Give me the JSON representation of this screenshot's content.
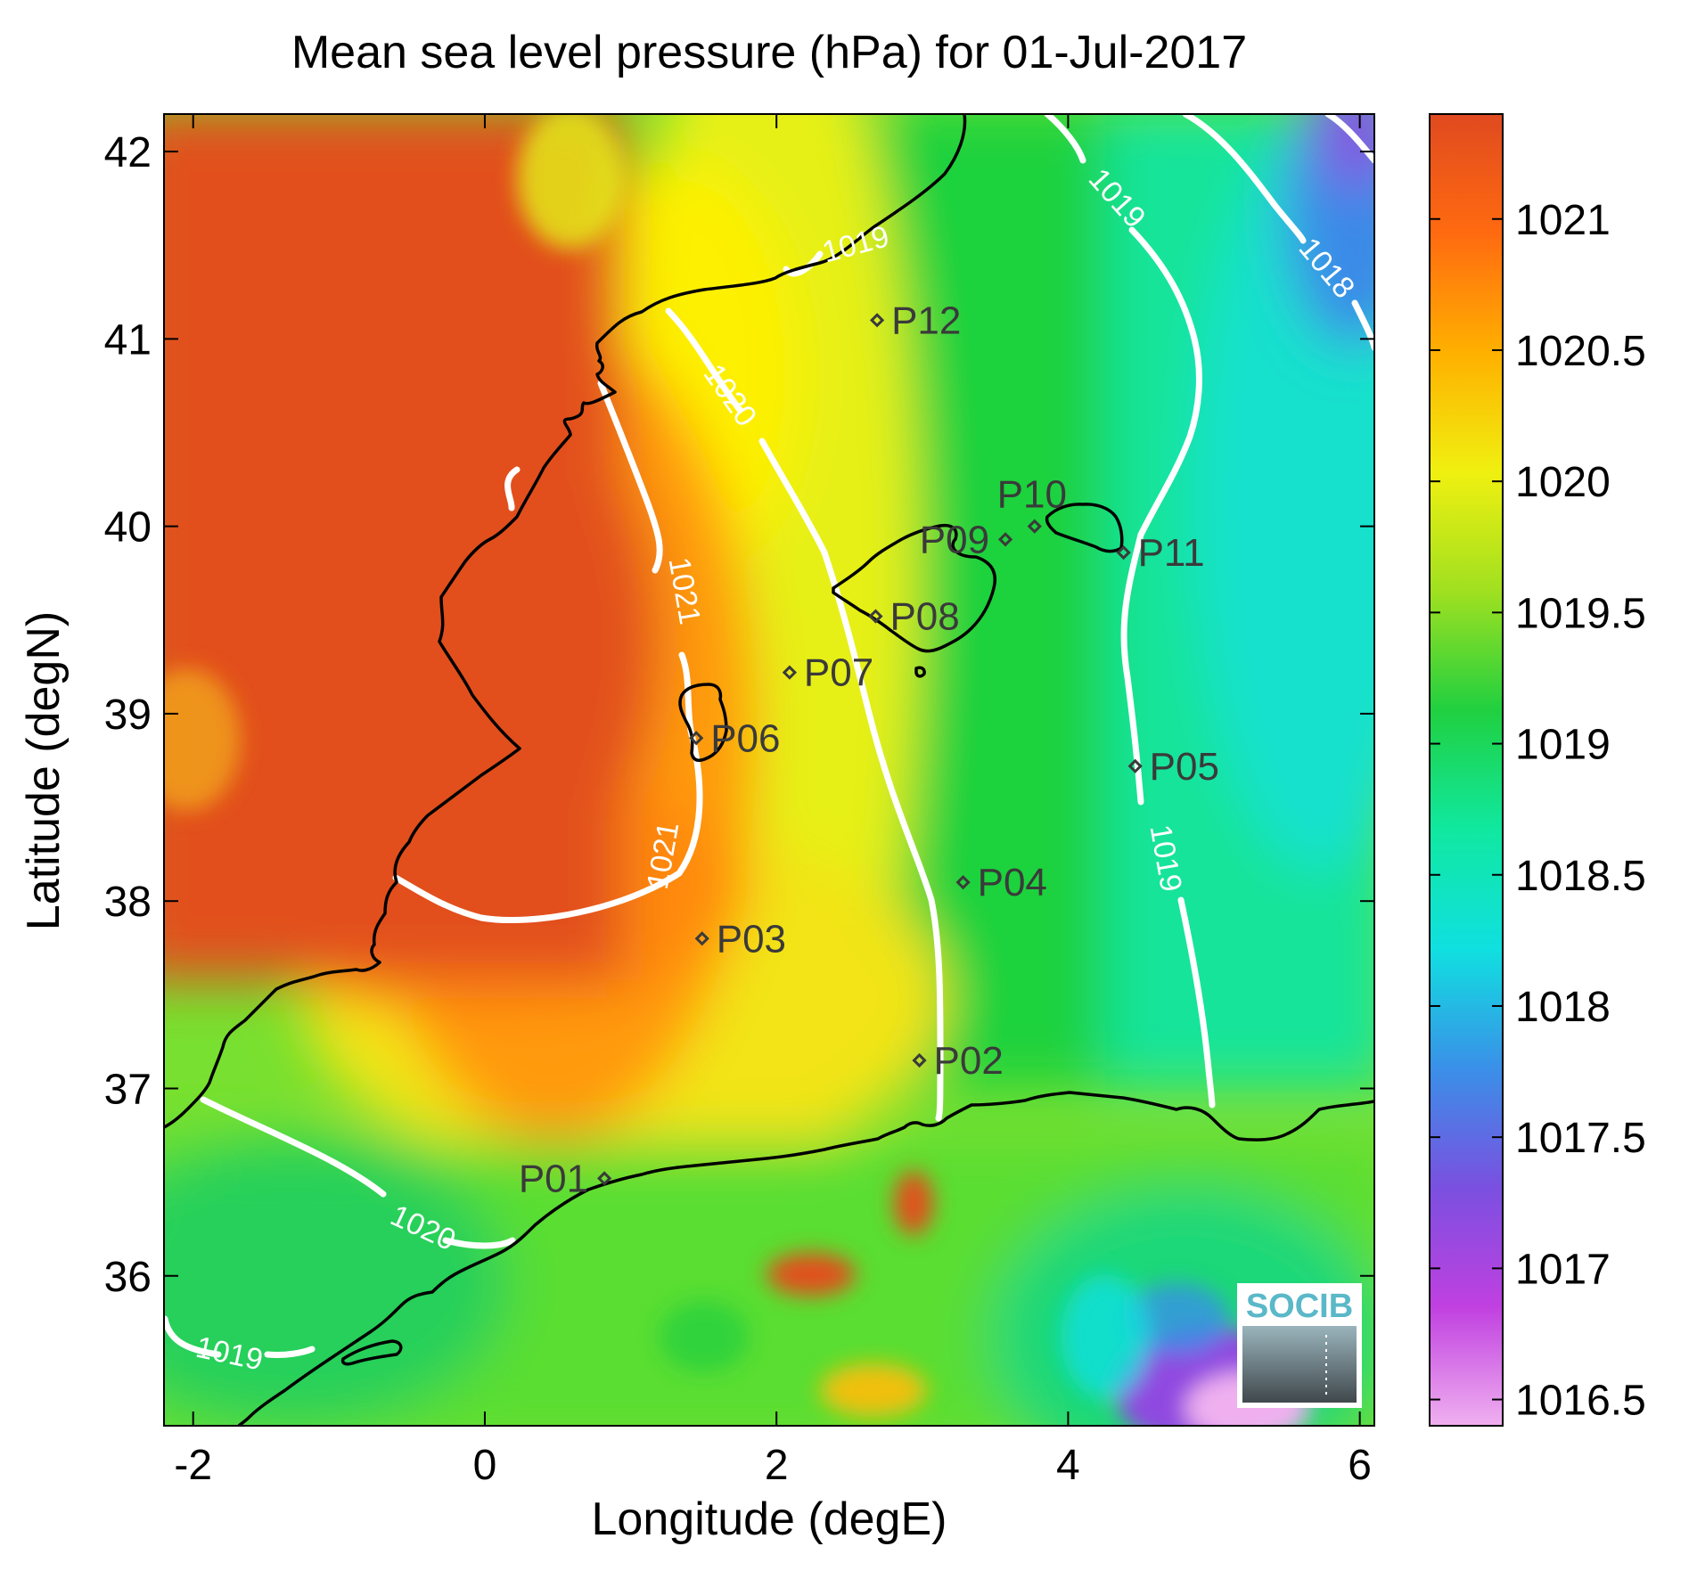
{
  "title": "Mean sea level pressure (hPa) for 01-Jul-2017",
  "axes": {
    "xlabel": "Longitude (degE)",
    "ylabel": "Latitude (degN)",
    "xlim": [
      -2.2,
      6.1
    ],
    "ylim": [
      35.2,
      42.2
    ],
    "xticks": [
      -2,
      0,
      2,
      4,
      6
    ],
    "yticks": [
      36,
      37,
      38,
      39,
      40,
      41,
      42
    ],
    "xtick_labels": [
      "-2",
      "0",
      "2",
      "4",
      "6"
    ],
    "ytick_labels": [
      "36",
      "37",
      "38",
      "39",
      "40",
      "41",
      "42"
    ]
  },
  "colorbar": {
    "range": [
      1016.4,
      1021.4
    ],
    "ticks": [
      1016.5,
      1017,
      1017.5,
      1018,
      1018.5,
      1019,
      1019.5,
      1020,
      1020.5,
      1021
    ],
    "tick_labels": [
      "1016.5",
      "1017",
      "1017.5",
      "1018",
      "1018.5",
      "1019",
      "1019.5",
      "1020",
      "1020.5",
      "1021"
    ],
    "colors": [
      "#f0b0f0",
      "#c040e0",
      "#7a50e0",
      "#3a90e8",
      "#10e0e0",
      "#10e8a0",
      "#20d040",
      "#a0e020",
      "#f0f010",
      "#ffb000",
      "#ff6a10",
      "#e04a20"
    ]
  },
  "contours": [
    {
      "label": "1021",
      "level": 1021
    },
    {
      "label": "1020",
      "level": 1020
    },
    {
      "label": "1019",
      "level": 1019
    },
    {
      "label": "1018",
      "level": 1018
    }
  ],
  "stations": [
    {
      "id": "P01",
      "lon": 0.82,
      "lat": 36.52
    },
    {
      "id": "P02",
      "lon": 2.98,
      "lat": 37.15
    },
    {
      "id": "P03",
      "lon": 1.49,
      "lat": 37.8
    },
    {
      "id": "P04",
      "lon": 3.28,
      "lat": 38.1
    },
    {
      "id": "P05",
      "lon": 4.46,
      "lat": 38.72
    },
    {
      "id": "P06",
      "lon": 1.45,
      "lat": 38.87
    },
    {
      "id": "P07",
      "lon": 2.09,
      "lat": 39.22
    },
    {
      "id": "P08",
      "lon": 2.68,
      "lat": 39.52
    },
    {
      "id": "P09",
      "lon": 3.57,
      "lat": 39.93
    },
    {
      "id": "P10",
      "lon": 3.77,
      "lat": 40.0
    },
    {
      "id": "P11",
      "lon": 4.38,
      "lat": 39.86
    },
    {
      "id": "P12",
      "lon": 2.69,
      "lat": 41.1
    }
  ],
  "logo": {
    "text": "SOCIB",
    "color": "#5ab8c8"
  }
}
